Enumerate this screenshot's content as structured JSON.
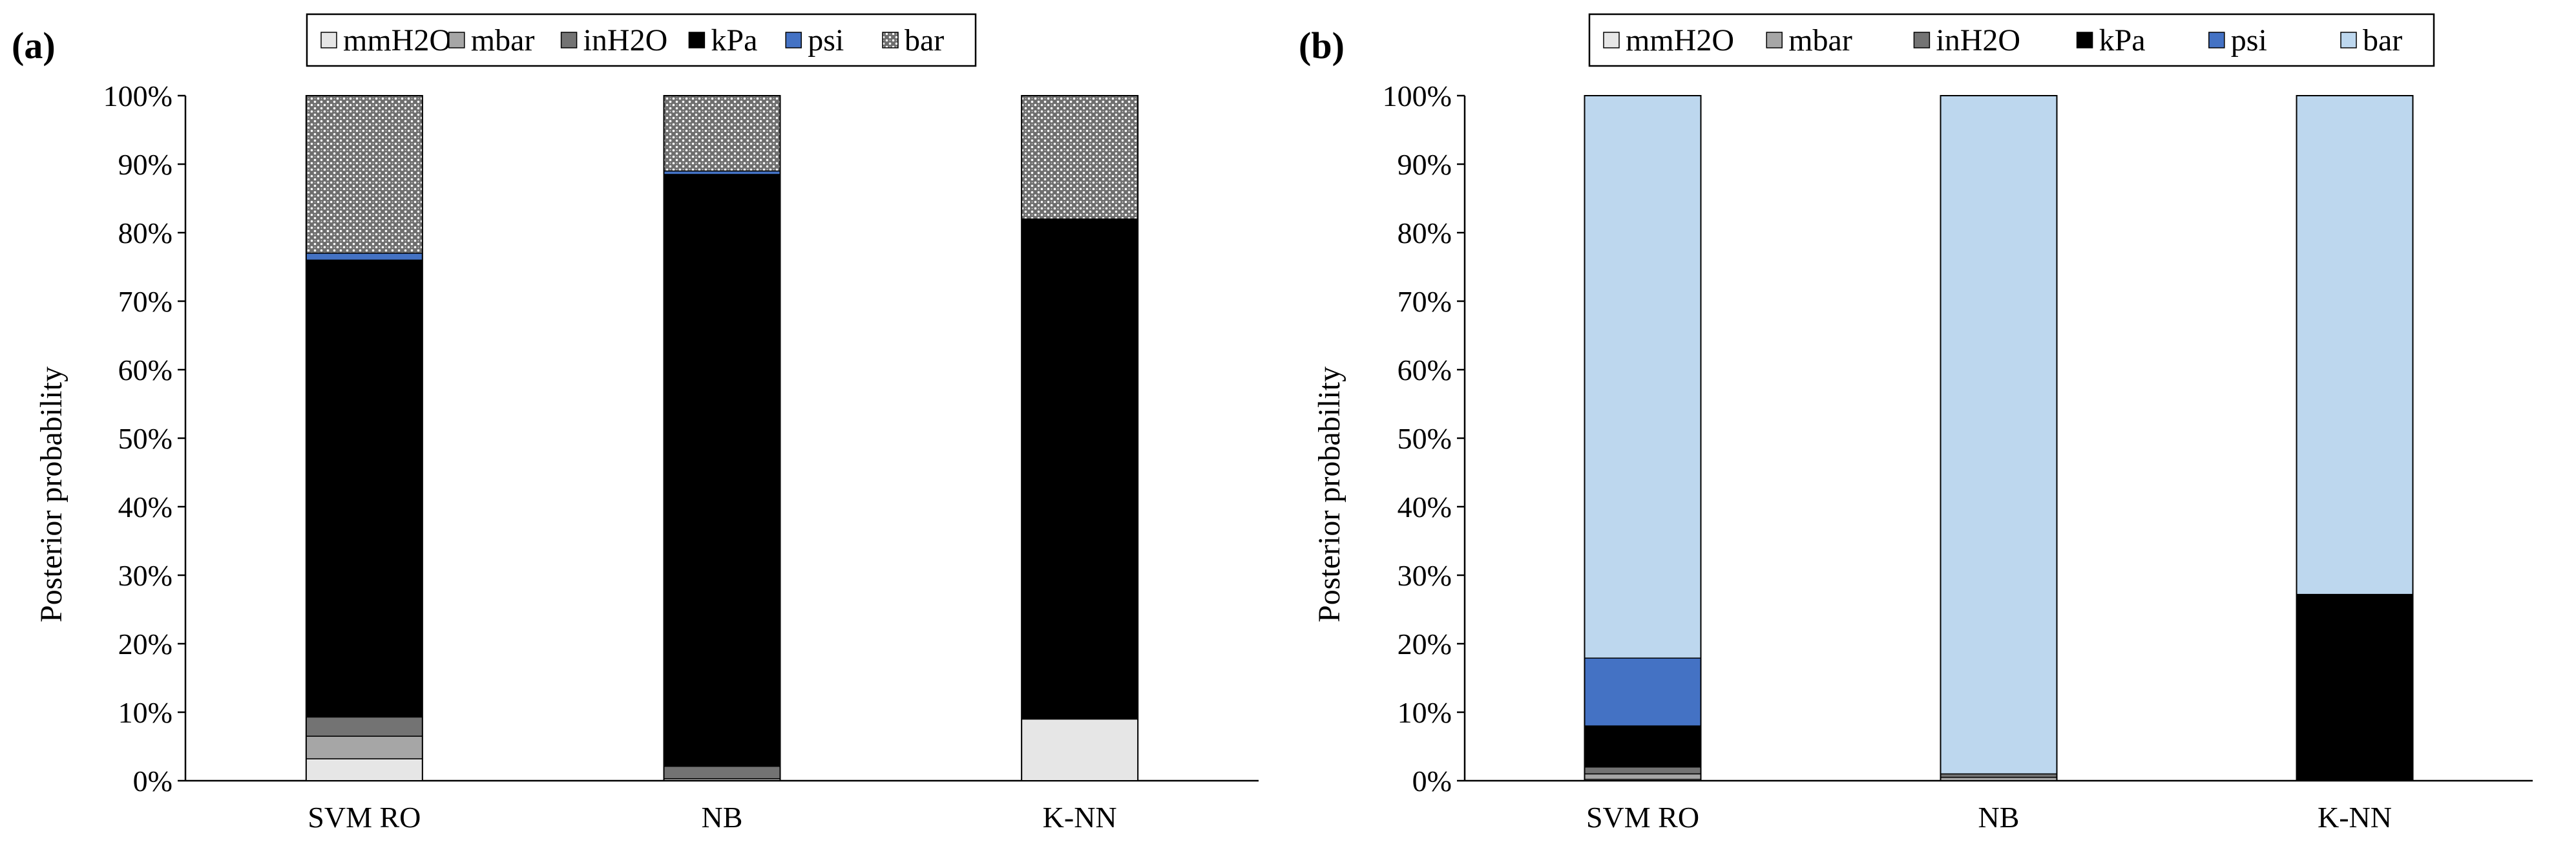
{
  "colors": {
    "mmH2O": "#e6e6e6",
    "mbar": "#a6a6a6",
    "inH2O": "#737373",
    "kPa": "#000000",
    "psi": "#4472c4",
    "bar": "#bdd7ee"
  },
  "chart_data": [
    {
      "type": "bar",
      "stacked": true,
      "panel_label": "(a)",
      "ylabel": "Posterior probability",
      "categories": [
        "SVM RO",
        "NB",
        "K-NN"
      ],
      "y_ticks": [
        "0%",
        "10%",
        "20%",
        "30%",
        "40%",
        "50%",
        "60%",
        "70%",
        "80%",
        "90%",
        "100%"
      ],
      "ylim": [
        0,
        100
      ],
      "legend_position": "top",
      "series": [
        {
          "name": "mmH2O",
          "values": [
            3.2,
            0.0,
            9.0
          ]
        },
        {
          "name": "mbar",
          "values": [
            3.3,
            0.3,
            0.0
          ]
        },
        {
          "name": "inH2O",
          "values": [
            2.8,
            1.8,
            0.0
          ]
        },
        {
          "name": "kPa",
          "values": [
            66.7,
            86.4,
            73.0
          ]
        },
        {
          "name": "psi",
          "values": [
            1.0,
            0.5,
            0.0
          ]
        },
        {
          "name": "bar",
          "values": [
            23.0,
            11.0,
            18.0
          ]
        }
      ]
    },
    {
      "type": "bar",
      "stacked": true,
      "panel_label": "(b)",
      "ylabel": "Posterior probability",
      "categories": [
        "SVM RO",
        "NB",
        "K-NN"
      ],
      "y_ticks": [
        "0%",
        "10%",
        "20%",
        "30%",
        "40%",
        "50%",
        "60%",
        "70%",
        "80%",
        "90%",
        "100%"
      ],
      "ylim": [
        0,
        100
      ],
      "legend_position": "top",
      "series": [
        {
          "name": "mmH2O",
          "values": [
            0.2,
            0.0,
            0.0
          ]
        },
        {
          "name": "mbar",
          "values": [
            0.8,
            0.5,
            0.0
          ]
        },
        {
          "name": "inH2O",
          "values": [
            1.0,
            0.5,
            0.0
          ]
        },
        {
          "name": "kPa",
          "values": [
            6.0,
            0.0,
            27.2
          ]
        },
        {
          "name": "psi",
          "values": [
            9.9,
            0.0,
            0.0
          ]
        },
        {
          "name": "bar",
          "values": [
            82.1,
            99.0,
            72.8
          ]
        }
      ]
    }
  ]
}
